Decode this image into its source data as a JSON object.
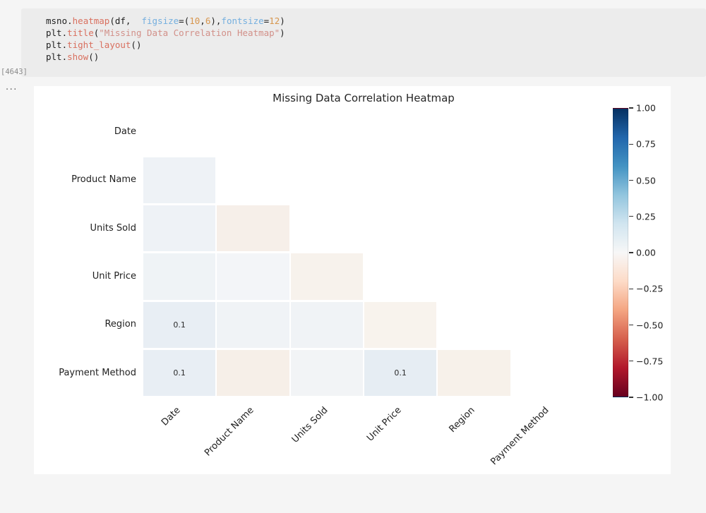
{
  "editor": {
    "execution_count": "[4643]",
    "collapsed_indicator": "...",
    "code_lines": [
      {
        "tokens": [
          {
            "t": "msno.",
            "c": "plain"
          },
          {
            "t": "heatmap",
            "c": "func"
          },
          {
            "t": "(df,  ",
            "c": "plain"
          },
          {
            "t": "figsize",
            "c": "param"
          },
          {
            "t": "=(",
            "c": "plain"
          },
          {
            "t": "10",
            "c": "num"
          },
          {
            "t": ",",
            "c": "plain"
          },
          {
            "t": "6",
            "c": "num"
          },
          {
            "t": "),",
            "c": "plain"
          },
          {
            "t": "fontsize",
            "c": "param"
          },
          {
            "t": "=",
            "c": "plain"
          },
          {
            "t": "12",
            "c": "num"
          },
          {
            "t": ")",
            "c": "plain"
          }
        ]
      },
      {
        "tokens": [
          {
            "t": "plt.",
            "c": "plain"
          },
          {
            "t": "title",
            "c": "func"
          },
          {
            "t": "(",
            "c": "plain"
          },
          {
            "t": "\"Missing Data Correlation Heatmap\"",
            "c": "str"
          },
          {
            "t": ")",
            "c": "plain"
          }
        ]
      },
      {
        "tokens": [
          {
            "t": "plt.",
            "c": "plain"
          },
          {
            "t": "tight_layout",
            "c": "func"
          },
          {
            "t": "()",
            "c": "plain"
          }
        ]
      },
      {
        "tokens": [
          {
            "t": "plt.",
            "c": "plain"
          },
          {
            "t": "show",
            "c": "func"
          },
          {
            "t": "()",
            "c": "plain"
          }
        ]
      }
    ]
  },
  "chart_data": {
    "type": "heatmap",
    "title": "Missing Data Correlation Heatmap",
    "variables": [
      "Date",
      "Product Name",
      "Units Sold",
      "Unit Price",
      "Region",
      "Payment Method"
    ],
    "layout": "lower-triangle, diagonal excluded",
    "cells": [
      {
        "row": 1,
        "col": 0,
        "label": "",
        "color": "#eef2f6"
      },
      {
        "row": 2,
        "col": 0,
        "label": "",
        "color": "#eef2f6"
      },
      {
        "row": 2,
        "col": 1,
        "label": "",
        "color": "#f6efe9"
      },
      {
        "row": 3,
        "col": 0,
        "label": "",
        "color": "#eff3f6"
      },
      {
        "row": 3,
        "col": 1,
        "label": "",
        "color": "#f3f5f8"
      },
      {
        "row": 3,
        "col": 2,
        "label": "",
        "color": "#f7f2ec"
      },
      {
        "row": 4,
        "col": 0,
        "label": "0.1",
        "color": "#e8eef4"
      },
      {
        "row": 4,
        "col": 1,
        "label": "",
        "color": "#f0f3f6"
      },
      {
        "row": 4,
        "col": 2,
        "label": "",
        "color": "#f0f3f6"
      },
      {
        "row": 4,
        "col": 3,
        "label": "",
        "color": "#f8f3ed"
      },
      {
        "row": 5,
        "col": 0,
        "label": "0.1",
        "color": "#e8eef4"
      },
      {
        "row": 5,
        "col": 1,
        "label": "",
        "color": "#f6efe8"
      },
      {
        "row": 5,
        "col": 2,
        "label": "",
        "color": "#f2f4f6"
      },
      {
        "row": 5,
        "col": 3,
        "label": "0.1",
        "color": "#e6edf3"
      },
      {
        "row": 5,
        "col": 4,
        "label": "",
        "color": "#f7f1ea"
      }
    ],
    "colorbar": {
      "min": -1.0,
      "max": 1.0,
      "colormap": "RdBu",
      "ticks": [
        "1.00",
        "0.75",
        "0.50",
        "0.25",
        "0.00",
        "−0.25",
        "−0.50",
        "−0.75",
        "−1.00"
      ],
      "gradient_top_to_bottom": [
        "#053061",
        "#2166ac",
        "#4393c3",
        "#92c5de",
        "#d1e5f0",
        "#f7f7f7",
        "#fddbc7",
        "#f4a582",
        "#d6604d",
        "#b2182b",
        "#67001f"
      ]
    }
  }
}
